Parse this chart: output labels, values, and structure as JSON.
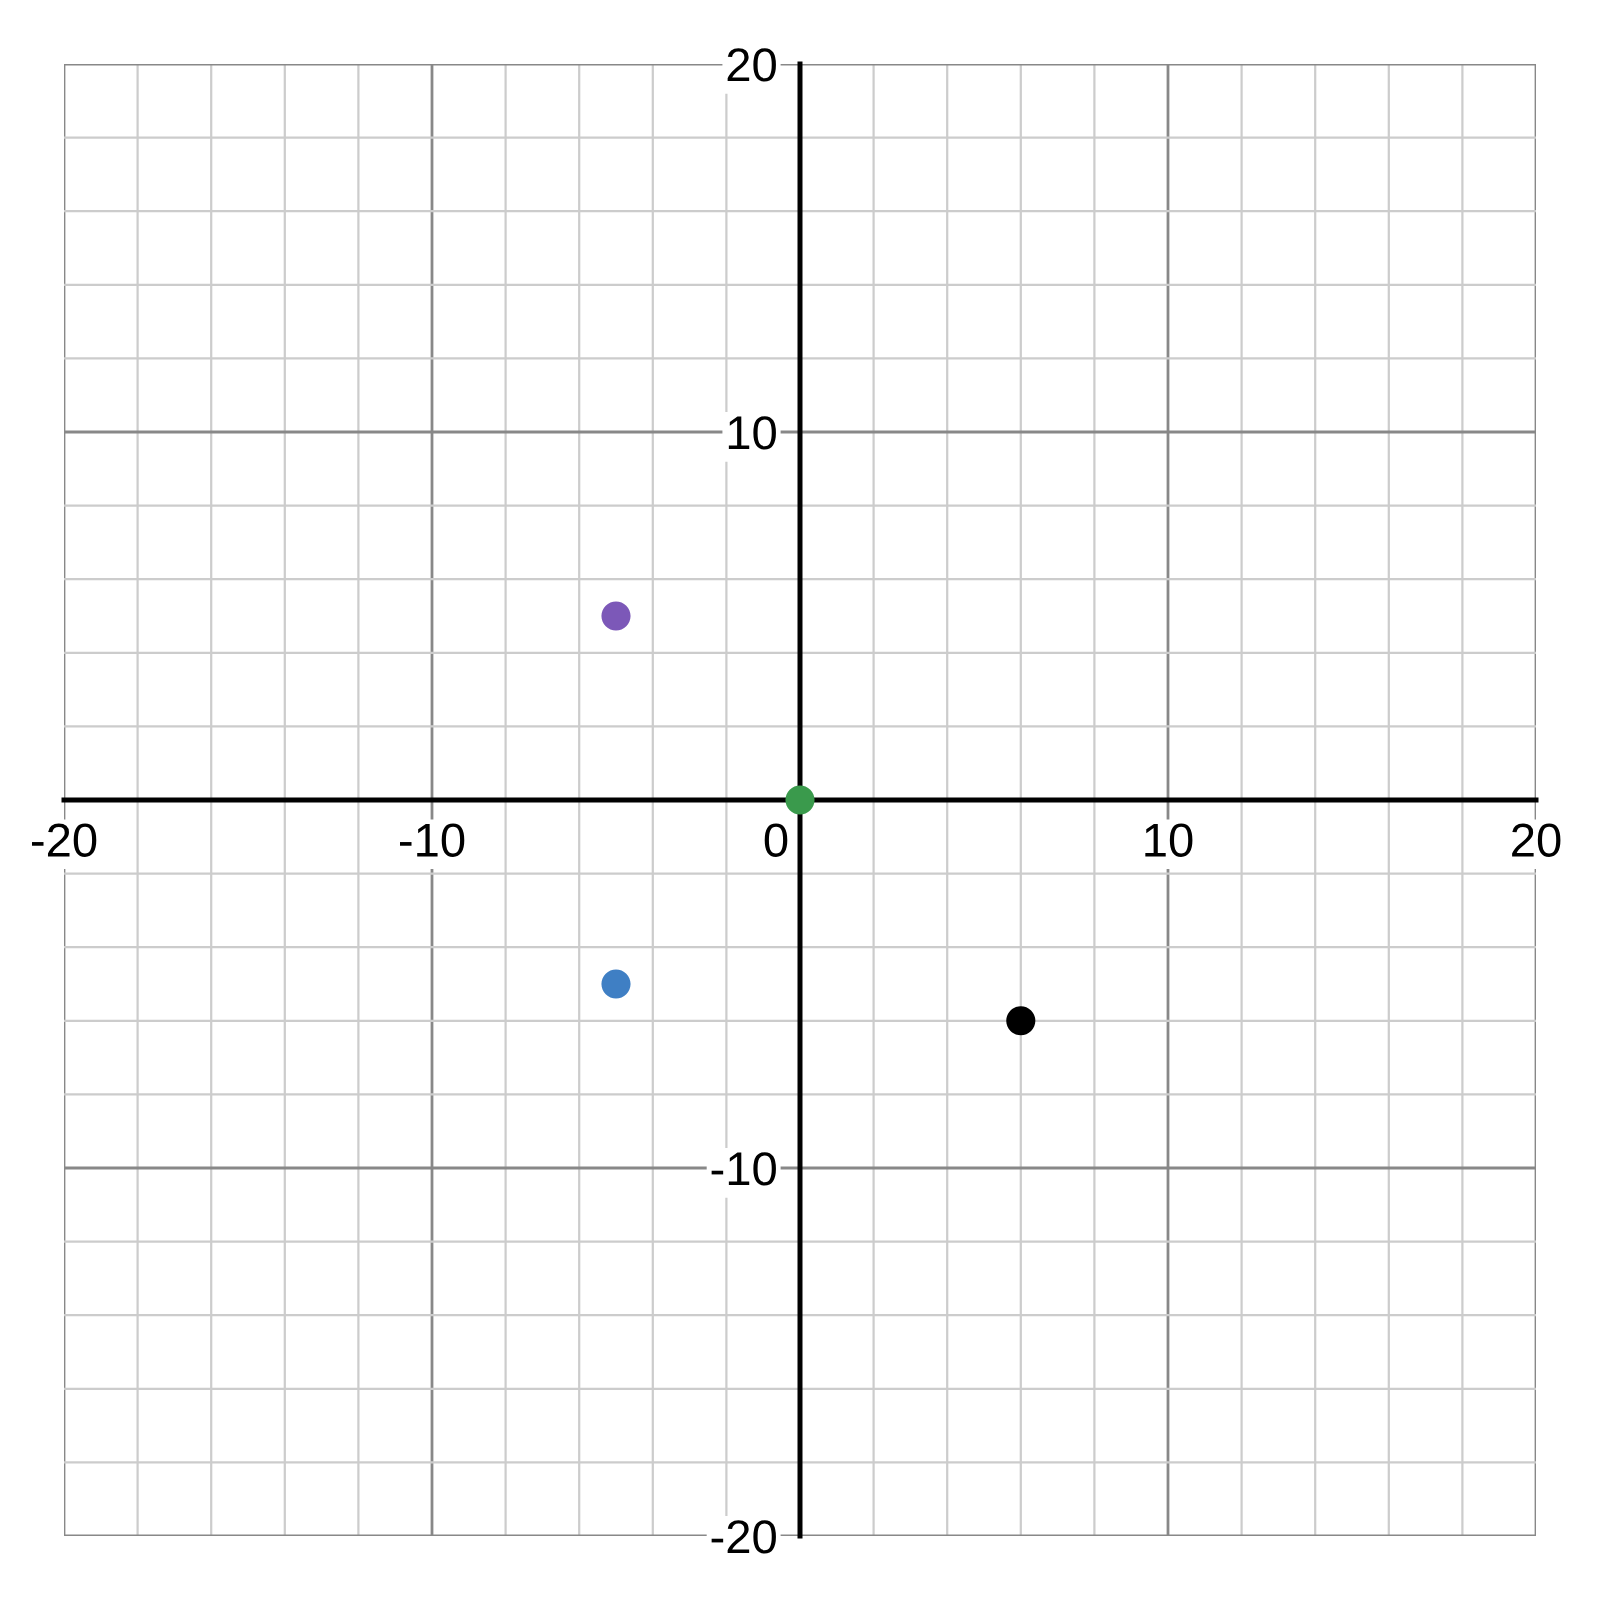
{
  "chart_data": {
    "type": "scatter",
    "series": [
      {
        "x": [
          -5,
          -5,
          0,
          6
        ],
        "values": [
          5,
          -5,
          0,
          -6
        ],
        "colors": [
          "#7c58b8",
          "#3f7fc4",
          "#3a9a4c",
          "#000000"
        ]
      }
    ],
    "xlim": [
      -20,
      20
    ],
    "ylim": [
      -20,
      20
    ],
    "xticks": [
      -20,
      -10,
      0,
      10,
      20
    ],
    "yticks": [
      -20,
      -10,
      {
        "value": 0,
        "label": null
      },
      10,
      20
    ],
    "grid": true,
    "marker": "circle"
  }
}
